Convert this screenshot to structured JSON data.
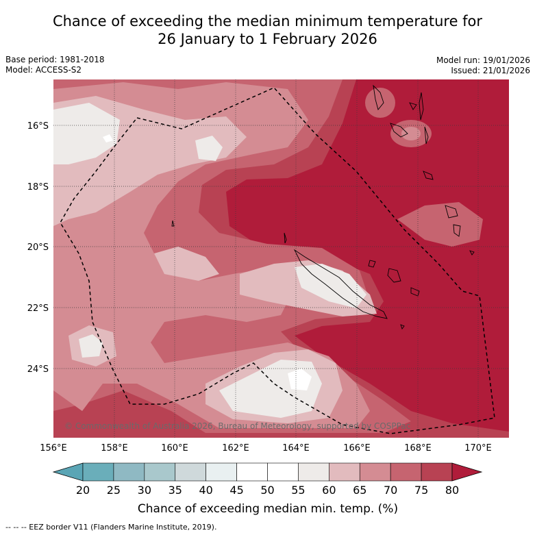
{
  "title": {
    "line1": "Chance of exceeding the median minimum temperature for",
    "line2": "26 January to 1 February 2026"
  },
  "meta": {
    "base_period": "Base period: 1981-2018",
    "model": "Model: ACCESS-S2",
    "model_run": "Model run: 19/01/2026",
    "issued": "Issued: 21/01/2026"
  },
  "axes": {
    "lat_labels": [
      "16°S",
      "18°S",
      "20°S",
      "22°S",
      "24°S"
    ],
    "lon_labels": [
      "156°E",
      "158°E",
      "160°E",
      "162°E",
      "164°E",
      "166°E",
      "168°E",
      "170°E"
    ]
  },
  "copyright": "© Commonwealth of Australia 2026, Bureau of Meteorology, supported by COSPPac",
  "colorbar": {
    "ticks": [
      "20",
      "25",
      "30",
      "35",
      "40",
      "45",
      "50",
      "55",
      "60",
      "65",
      "70",
      "75",
      "80"
    ],
    "colors": {
      "below20": "#5aa5b5",
      "b20_25": "#6aaeba",
      "b25_30": "#8fb9c3",
      "b30_35": "#a9c8cc",
      "b35_40": "#cfd9db",
      "b40_45": "#e9f0f1",
      "b45_50": "#ffffff",
      "b50_55": "#ffffff",
      "b55_60": "#eeebe9",
      "b60_65": "#e2bbbe",
      "b65_70": "#d48c93",
      "b70_75": "#c66470",
      "b75_80": "#b84253",
      "above80": "#b01c3a"
    },
    "label": "Chance of exceeding median min. temp. (%)"
  },
  "footer": "--  --  -- EEZ border V11 (Flanders Marine Institute, 2019)."
}
